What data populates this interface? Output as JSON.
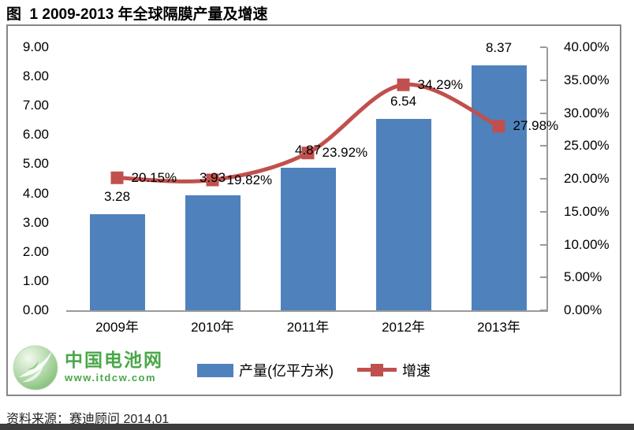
{
  "page": {
    "title": "图  1 2009-2013 年全球隔膜产量及增速",
    "source": "资料来源：赛迪顾问 2014,01"
  },
  "watermark": {
    "name": "中国电池网",
    "url": "www.itdcw.com",
    "color": "#3aa03a"
  },
  "chart_data": {
    "type": "bar+line",
    "title": "图 1 2009-2013 年全球隔膜产量及增速",
    "categories": [
      "2009年",
      "2010年",
      "2011年",
      "2012年",
      "2013年"
    ],
    "series": [
      {
        "name": "产量(亿平方米)",
        "type": "bar",
        "axis": "left",
        "color": "#4f81bd",
        "values": [
          3.28,
          3.93,
          4.87,
          6.54,
          8.37
        ],
        "data_labels": [
          "3.28",
          "3.93",
          "4.87",
          "6.54",
          "8.37"
        ]
      },
      {
        "name": "增速",
        "type": "line",
        "axis": "right",
        "color": "#c0504d",
        "values": [
          20.15,
          19.82,
          23.92,
          34.29,
          27.98
        ],
        "data_labels": [
          "20.15%",
          "19.82%",
          "23.92%",
          "34.29%",
          "27.98%"
        ]
      }
    ],
    "left_axis": {
      "min": 0,
      "max": 9,
      "step": 1,
      "tick_labels": [
        "0.00",
        "1.00",
        "2.00",
        "3.00",
        "4.00",
        "5.00",
        "6.00",
        "7.00",
        "8.00",
        "9.00"
      ]
    },
    "right_axis": {
      "min": 0,
      "max": 40,
      "step": 5,
      "tick_labels": [
        "0.00%",
        "5.00%",
        "10.00%",
        "15.00%",
        "20.00%",
        "25.00%",
        "30.00%",
        "35.00%",
        "40.00%"
      ]
    },
    "grid": false,
    "legend_position": "bottom",
    "axis_color": "#9a9a9a"
  }
}
